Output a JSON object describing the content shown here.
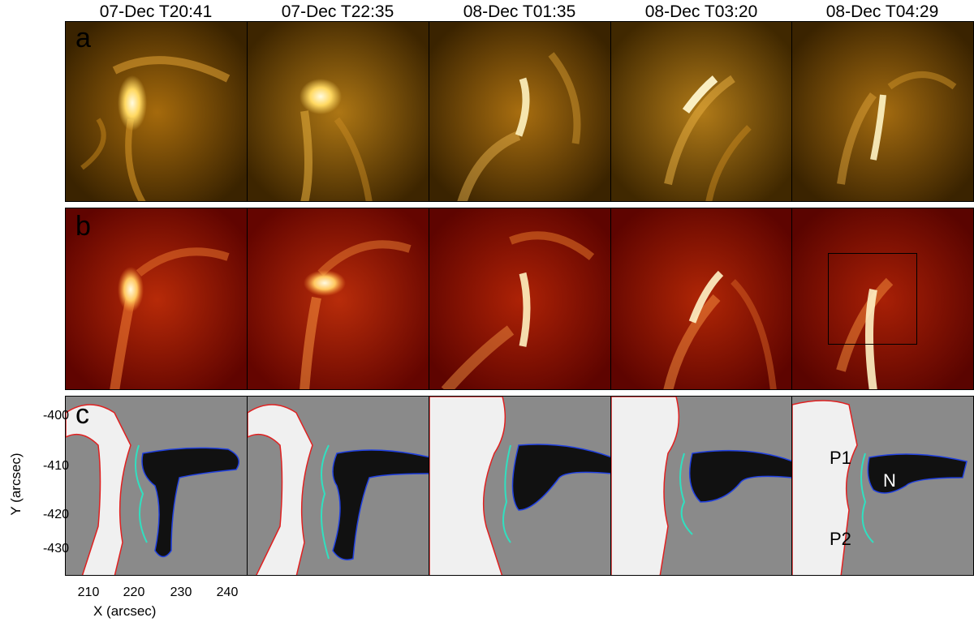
{
  "time_labels": [
    "07-Dec T20:41",
    "07-Dec T22:35",
    "08-Dec T01:35",
    "08-Dec T03:20",
    "08-Dec T04:29"
  ],
  "row_labels": {
    "a": "a",
    "b": "b",
    "c": "c"
  },
  "axes": {
    "ylabel": "Y (arcsec)",
    "xlabel": "X (arcsec)",
    "yticks": [
      "-400",
      "-410",
      "-420",
      "-430"
    ],
    "xticks": [
      "210",
      "220",
      "230",
      "240"
    ]
  },
  "region_labels": {
    "p1": "P1",
    "p2": "P2",
    "n": "N"
  },
  "colors": {
    "row_a_dark": "#2a1a00",
    "row_a_bright": "#ffe9a0",
    "row_b_dark": "#5a0000",
    "row_b_bright": "#fff3c8",
    "magnetogram_bg": "#8a8a8a",
    "contour_positive": "#e02020",
    "contour_negative": "#2040e0",
    "contour_pil": "#30e0c0"
  }
}
